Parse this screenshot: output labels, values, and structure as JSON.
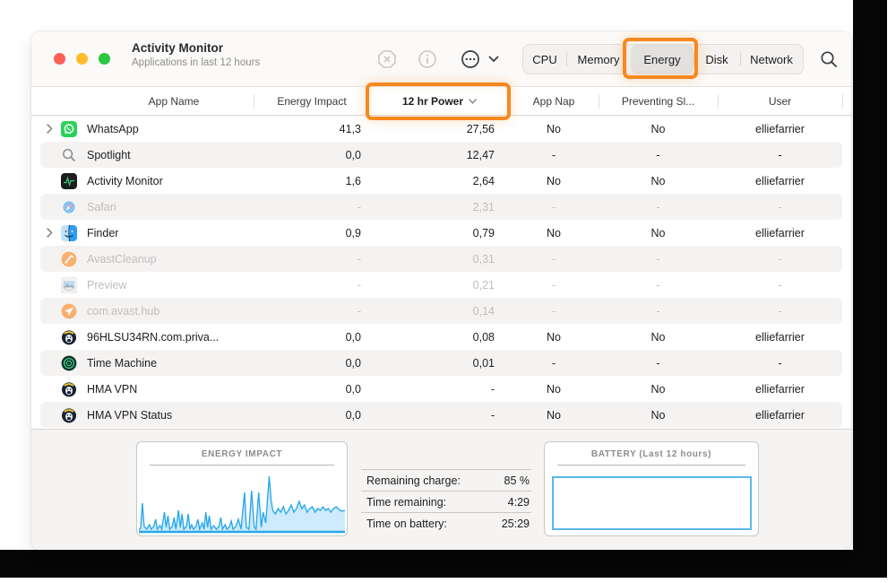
{
  "window": {
    "title": "Activity Monitor",
    "subtitle": "Applications in last 12 hours",
    "toolbar": {
      "tabs": [
        "CPU",
        "Memory",
        "Energy",
        "Disk",
        "Network"
      ],
      "selected_tab": "Energy",
      "icon_buttons": [
        "quit-process",
        "inspect-info",
        "more-options",
        "search"
      ]
    }
  },
  "table": {
    "columns": [
      "App Name",
      "Energy Impact",
      "12 hr Power",
      "App Nap",
      "Preventing Sl...",
      "User"
    ],
    "sorted_column": "12 hr Power",
    "rows": [
      {
        "app": "WhatsApp",
        "icon": "whatsapp",
        "expandable": true,
        "dimmed": false,
        "energy_impact": "41,3",
        "power_12hr": "27,56",
        "app_nap": "No",
        "preventing_sleep": "No",
        "user": "elliefarrier"
      },
      {
        "app": "Spotlight",
        "icon": "spotlight",
        "expandable": false,
        "dimmed": false,
        "energy_impact": "0,0",
        "power_12hr": "12,47",
        "app_nap": "-",
        "preventing_sleep": "-",
        "user": "-"
      },
      {
        "app": "Activity Monitor",
        "icon": "activity-monitor",
        "expandable": false,
        "dimmed": false,
        "energy_impact": "1,6",
        "power_12hr": "2,64",
        "app_nap": "No",
        "preventing_sleep": "No",
        "user": "elliefarrier"
      },
      {
        "app": "Safari",
        "icon": "safari",
        "expandable": false,
        "dimmed": true,
        "energy_impact": "-",
        "power_12hr": "2,31",
        "app_nap": "-",
        "preventing_sleep": "-",
        "user": "-"
      },
      {
        "app": "Finder",
        "icon": "finder",
        "expandable": true,
        "dimmed": false,
        "energy_impact": "0,9",
        "power_12hr": "0,79",
        "app_nap": "No",
        "preventing_sleep": "No",
        "user": "elliefarrier"
      },
      {
        "app": "AvastCleanup",
        "icon": "avast-cleanup",
        "expandable": false,
        "dimmed": true,
        "energy_impact": "-",
        "power_12hr": "0,31",
        "app_nap": "-",
        "preventing_sleep": "-",
        "user": "-"
      },
      {
        "app": "Preview",
        "icon": "preview",
        "expandable": false,
        "dimmed": true,
        "energy_impact": "-",
        "power_12hr": "0,21",
        "app_nap": "-",
        "preventing_sleep": "-",
        "user": "-"
      },
      {
        "app": "com.avast.hub",
        "icon": "avast-hub",
        "expandable": false,
        "dimmed": true,
        "energy_impact": "-",
        "power_12hr": "0,14",
        "app_nap": "-",
        "preventing_sleep": "-",
        "user": "-"
      },
      {
        "app": "96HLSU34RN.com.priva...",
        "icon": "hma",
        "expandable": false,
        "dimmed": false,
        "energy_impact": "0,0",
        "power_12hr": "0,08",
        "app_nap": "No",
        "preventing_sleep": "No",
        "user": "elliefarrier"
      },
      {
        "app": "Time Machine",
        "icon": "time-machine",
        "expandable": false,
        "dimmed": false,
        "energy_impact": "0,0",
        "power_12hr": "0,01",
        "app_nap": "-",
        "preventing_sleep": "-",
        "user": "-"
      },
      {
        "app": "HMA VPN",
        "icon": "hma",
        "expandable": false,
        "dimmed": false,
        "energy_impact": "0,0",
        "power_12hr": "-",
        "app_nap": "No",
        "preventing_sleep": "No",
        "user": "elliefarrier"
      },
      {
        "app": "HMA VPN Status",
        "icon": "hma",
        "expandable": false,
        "dimmed": false,
        "energy_impact": "0,0",
        "power_12hr": "-",
        "app_nap": "No",
        "preventing_sleep": "No",
        "user": "elliefarrier"
      }
    ]
  },
  "footer": {
    "energy_box_title": "ENERGY IMPACT",
    "battery_box_title": "BATTERY (Last 12 hours)",
    "stats": [
      {
        "label": "Remaining charge:",
        "value": "85 %"
      },
      {
        "label": "Time remaining:",
        "value": "4:29"
      },
      {
        "label": "Time on battery:",
        "value": "25:29"
      }
    ]
  },
  "chart_data": {
    "type": "area",
    "title": "ENERGY IMPACT",
    "ylabel": "",
    "xlabel": "",
    "legend": [],
    "axes_visible": false,
    "description": "unlabeled 12-hour energy impact sparkline, spiky activity with sustained elevated tail",
    "points": [
      [
        0,
        68
      ],
      [
        2,
        66
      ],
      [
        4,
        38
      ],
      [
        6,
        64
      ],
      [
        9,
        67
      ],
      [
        12,
        62
      ],
      [
        14,
        67
      ],
      [
        17,
        64
      ],
      [
        19,
        56
      ],
      [
        21,
        67
      ],
      [
        24,
        63
      ],
      [
        26,
        67
      ],
      [
        29,
        48
      ],
      [
        31,
        65
      ],
      [
        33,
        52
      ],
      [
        35,
        67
      ],
      [
        38,
        64
      ],
      [
        40,
        54
      ],
      [
        42,
        67
      ],
      [
        45,
        46
      ],
      [
        47,
        65
      ],
      [
        49,
        50
      ],
      [
        51,
        67
      ],
      [
        54,
        64
      ],
      [
        56,
        50
      ],
      [
        58,
        67
      ],
      [
        60,
        62
      ],
      [
        62,
        67
      ],
      [
        65,
        64
      ],
      [
        67,
        56
      ],
      [
        69,
        67
      ],
      [
        72,
        60
      ],
      [
        74,
        67
      ],
      [
        76,
        48
      ],
      [
        78,
        65
      ],
      [
        80,
        52
      ],
      [
        82,
        67
      ],
      [
        85,
        63
      ],
      [
        88,
        67
      ],
      [
        91,
        64
      ],
      [
        93,
        54
      ],
      [
        95,
        67
      ],
      [
        98,
        62
      ],
      [
        100,
        67
      ],
      [
        103,
        64
      ],
      [
        105,
        58
      ],
      [
        107,
        67
      ],
      [
        110,
        64
      ],
      [
        113,
        56
      ],
      [
        116,
        67
      ],
      [
        120,
        26
      ],
      [
        122,
        65
      ],
      [
        125,
        67
      ],
      [
        128,
        24
      ],
      [
        131,
        65
      ],
      [
        133,
        67
      ],
      [
        136,
        26
      ],
      [
        139,
        65
      ],
      [
        141,
        48
      ],
      [
        144,
        60
      ],
      [
        148,
        8
      ],
      [
        150,
        34
      ],
      [
        152,
        46
      ],
      [
        155,
        50
      ],
      [
        158,
        44
      ],
      [
        161,
        48
      ],
      [
        164,
        42
      ],
      [
        167,
        50
      ],
      [
        170,
        46
      ],
      [
        173,
        40
      ],
      [
        176,
        48
      ],
      [
        179,
        44
      ],
      [
        182,
        36
      ],
      [
        185,
        44
      ],
      [
        188,
        40
      ],
      [
        191,
        48
      ],
      [
        194,
        44
      ],
      [
        197,
        42
      ],
      [
        200,
        48
      ],
      [
        203,
        44
      ],
      [
        206,
        46
      ],
      [
        209,
        42
      ],
      [
        212,
        46
      ],
      [
        215,
        44
      ],
      [
        218,
        48
      ],
      [
        221,
        44
      ],
      [
        224,
        42
      ],
      [
        227,
        45
      ],
      [
        230,
        47
      ],
      [
        234,
        46
      ]
    ]
  },
  "colors": {
    "annotation_orange": "#f6881f",
    "chart_blue": "#2aa8ea",
    "chart_fill": "#cfeafc",
    "battery_border": "#5ab7ea",
    "traffic_red": "#ff5f57",
    "traffic_yellow": "#febc2e",
    "traffic_green": "#28c840"
  }
}
